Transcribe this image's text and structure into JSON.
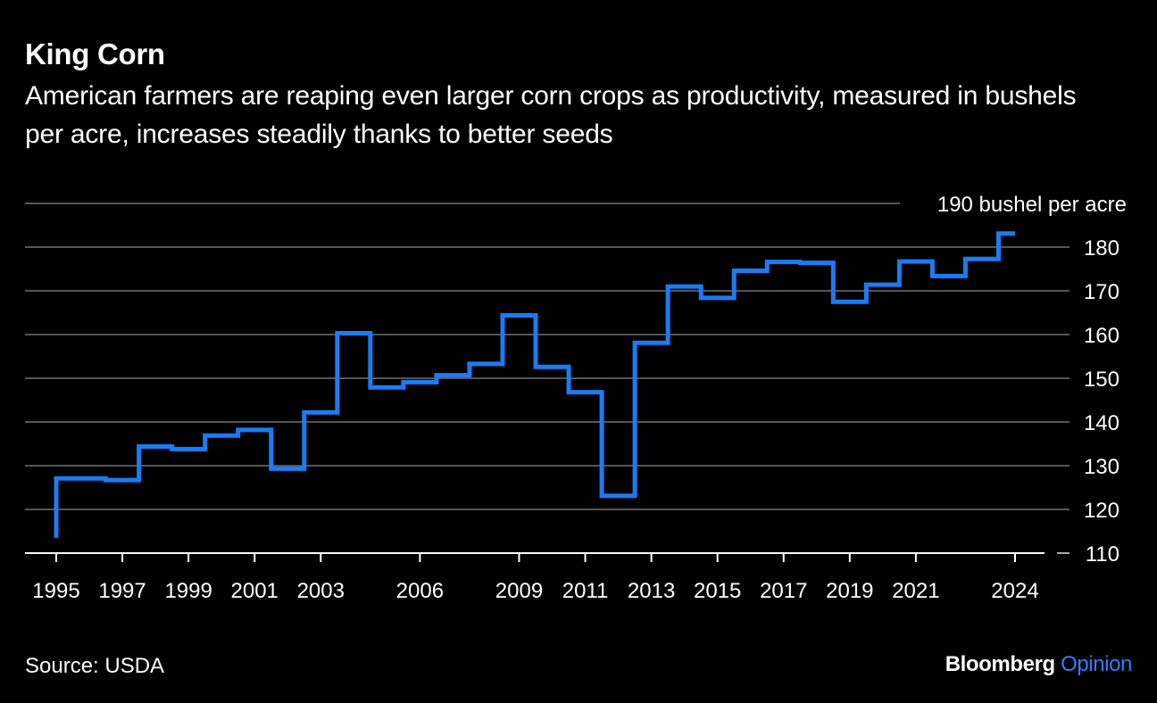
{
  "header": {
    "title": "King Corn",
    "subtitle": "American farmers are reaping even larger corn crops as productivity, measured in bushels per acre, increases steadily thanks to better seeds"
  },
  "footer": {
    "source": "Source: USDA",
    "brand_primary": "Bloomberg",
    "brand_secondary": "Opinion"
  },
  "colors": {
    "background": "#000000",
    "line": "#1a7cf5",
    "grid": "#555555",
    "text": "#ffffff",
    "brand_accent": "#2d7ff9"
  },
  "chart_data": {
    "type": "line",
    "step": true,
    "title": "King Corn",
    "unit_label": "190 bushel per acre",
    "ylim": [
      110,
      190
    ],
    "yticks": [
      110,
      120,
      130,
      140,
      150,
      160,
      170,
      180,
      190
    ],
    "ytick_labels": [
      "110",
      "120",
      "130",
      "140",
      "150",
      "160",
      "170",
      "180",
      "190 bushel per acre"
    ],
    "xlim": [
      1995,
      2024
    ],
    "xticks": [
      1995,
      1997,
      1999,
      2001,
      2003,
      2006,
      2009,
      2011,
      2013,
      2015,
      2017,
      2019,
      2021,
      2024
    ],
    "grid": true,
    "series": [
      {
        "name": "",
        "x": [
          1995,
          1996,
          1997,
          1998,
          1999,
          2000,
          2001,
          2002,
          2003,
          2004,
          2005,
          2006,
          2007,
          2008,
          2009,
          2010,
          2011,
          2012,
          2013,
          2014,
          2015,
          2016,
          2017,
          2018,
          2019,
          2020,
          2021,
          2022,
          2023,
          2024
        ],
        "values": [
          113.5,
          127.1,
          126.7,
          134.4,
          133.8,
          136.9,
          138.2,
          129.3,
          142.2,
          160.3,
          147.9,
          149.1,
          150.7,
          153.3,
          164.4,
          152.6,
          146.8,
          123.1,
          158.1,
          171.0,
          168.4,
          174.6,
          176.6,
          176.4,
          167.5,
          171.4,
          176.7,
          173.4,
          177.3,
          183.1
        ]
      }
    ]
  }
}
